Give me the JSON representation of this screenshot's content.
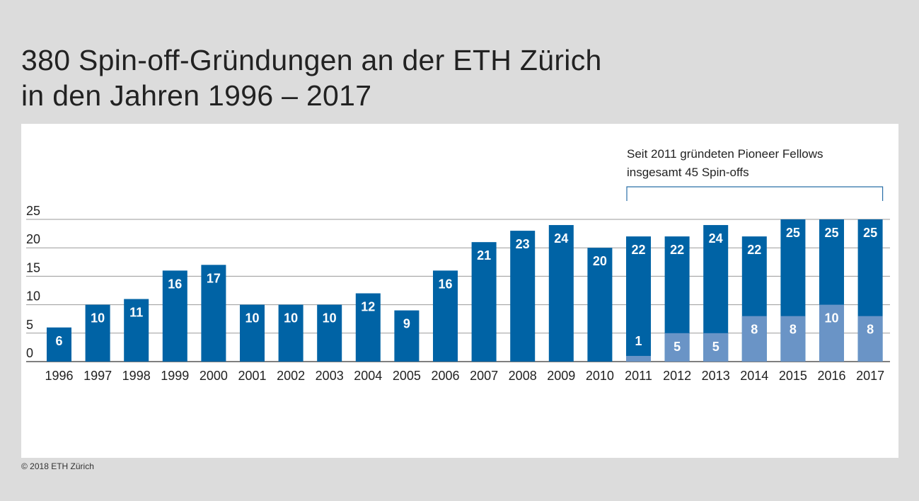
{
  "title_line1": "380 Spin-off-Gründungen an der ETH Zürich",
  "title_line2": "in den Jahren 1996 – 2017",
  "footer": "© 2018 ETH Zürich",
  "colors": {
    "total": "#0063a5",
    "pioneer": "#6a94c6",
    "grid": "#9a9a9a",
    "background": "#dcdcdc"
  },
  "chart_data": {
    "type": "bar",
    "stacked": true,
    "categories": [
      "1996",
      "1997",
      "1998",
      "1999",
      "2000",
      "2001",
      "2002",
      "2003",
      "2004",
      "2005",
      "2006",
      "2007",
      "2008",
      "2009",
      "2010",
      "2011",
      "2012",
      "2013",
      "2014",
      "2015",
      "2016",
      "2017"
    ],
    "totals": [
      6,
      10,
      11,
      16,
      17,
      10,
      10,
      10,
      12,
      9,
      16,
      21,
      23,
      24,
      20,
      22,
      22,
      24,
      22,
      25,
      25,
      25
    ],
    "pioneer_fellows": [
      null,
      null,
      null,
      null,
      null,
      null,
      null,
      null,
      null,
      null,
      null,
      null,
      null,
      null,
      null,
      1,
      5,
      5,
      8,
      8,
      10,
      8
    ],
    "yticks": [
      0,
      5,
      10,
      15,
      20,
      25
    ],
    "ylim": [
      0,
      25
    ],
    "grid": true,
    "annotation": {
      "line1": "Seit 2011 gründeten Pioneer Fellows",
      "line2": "insgesamt 45 Spin-offs",
      "range": [
        "2011",
        "2017"
      ]
    }
  }
}
